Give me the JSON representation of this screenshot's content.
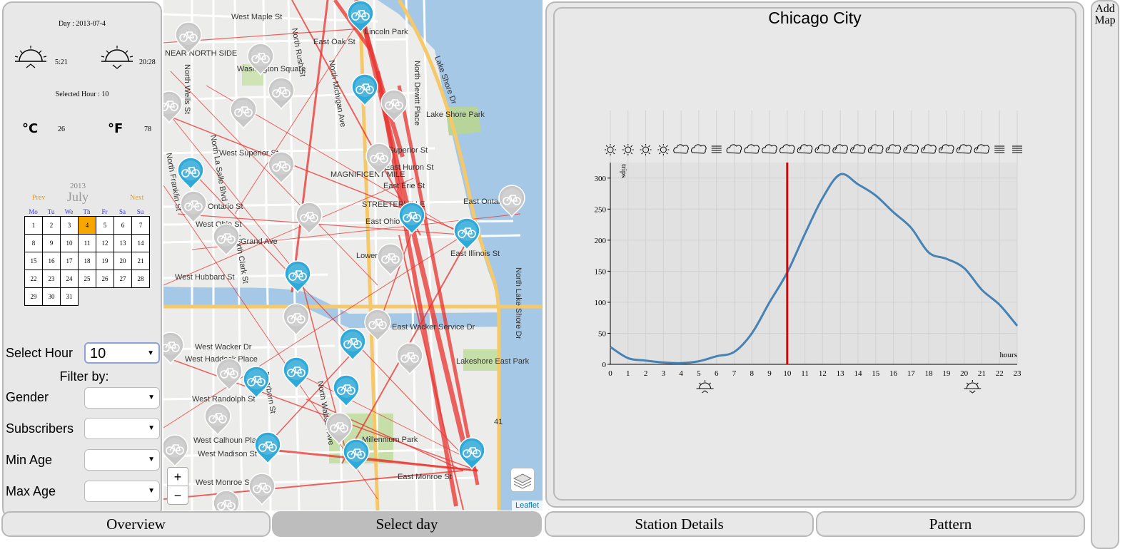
{
  "left_panel": {
    "day_label": "Day : 2013-07-4",
    "sunrise": "5:21",
    "sunset": "20:28",
    "selected_hour_label": "Selected Hour : 10",
    "celsius_symbol": "°C",
    "fahrenheit_symbol": "°F",
    "celsius": "26",
    "fahrenheit": "78"
  },
  "calendar": {
    "year": "2013",
    "month": "July",
    "prev": "Prev",
    "next": "Next",
    "weekdays": [
      "Mo",
      "Tu",
      "We",
      "Th",
      "Fr",
      "Sa",
      "Su"
    ],
    "days": [
      "1",
      "2",
      "3",
      "4",
      "5",
      "6",
      "7",
      "8",
      "9",
      "10",
      "11",
      "12",
      "13",
      "14",
      "15",
      "16",
      "17",
      "18",
      "19",
      "20",
      "21",
      "22",
      "23",
      "24",
      "25",
      "26",
      "27",
      "28",
      "29",
      "30",
      "31"
    ],
    "selected_day": "4"
  },
  "filters": {
    "select_hour_label": "Select Hour",
    "select_hour_value": "10",
    "filter_by": "Filter by:",
    "gender_label": "Gender",
    "subscribers_label": "Subscribers",
    "min_age_label": "Min Age",
    "max_age_label": "Max Age",
    "gender_value": "",
    "subscribers_value": "",
    "min_age_value": "",
    "max_age_value": ""
  },
  "map": {
    "zoom_in": "+",
    "zoom_out": "−",
    "attribution": "Leaflet",
    "street_labels": [
      "West Maple St",
      "East Oak St",
      "North Rush St",
      "North Michigan Ave",
      "North Dewitt Place",
      "Lake Shore Dr",
      "Lincoln Park",
      "Lake Shore Park",
      "West Superior St",
      "East Superior St",
      "East Huron St",
      "East Erie St",
      "East Ontario St",
      "Ontario St",
      "West Ohio St",
      "East Ohio St",
      "Grand Ave",
      "East Illinois St",
      "West Hubbard St",
      "Lower",
      "East Wacker Service Dr",
      "West Wacker Dr",
      "West Haddock Place",
      "West Randolph St",
      "Lakeshore East Park",
      "Millennium Park",
      "West Calhoun Place",
      "West Madison St",
      "East Monroe St",
      "West Monroe St",
      "North Wells St",
      "North La Salle Blvd",
      "North Clark St",
      "North Franklin St",
      "North Wabash Ave",
      "Dearborn St",
      "North Lake Shore Dr",
      "MAGNIFICENT MILE",
      "STREETERVILLE",
      "NEAR NORTH SIDE",
      "Washington Square",
      "41"
    ],
    "icon_colors": {
      "active": "#2fa9d8",
      "inactive": "#c8c8c8",
      "route": "#e8322e"
    }
  },
  "chart_data": {
    "type": "line",
    "title": "Chicago City",
    "xlabel": "hours",
    "ylabel": "trips",
    "x": [
      0,
      1,
      2,
      3,
      4,
      5,
      6,
      7,
      8,
      9,
      10,
      11,
      12,
      13,
      14,
      15,
      16,
      17,
      18,
      19,
      20,
      21,
      22,
      23
    ],
    "series": [
      {
        "values": [
          28,
          10,
          6,
          3,
          2,
          5,
          13,
          20,
          50,
          100,
          148,
          210,
          268,
          306,
          290,
          272,
          245,
          220,
          180,
          170,
          155,
          120,
          96,
          62
        ]
      }
    ],
    "ylim": [
      0,
      325
    ],
    "yticks": [
      0,
      50,
      100,
      150,
      200,
      250,
      300
    ],
    "selected_hour": 10,
    "sunrise_hour": 5.35,
    "sunset_hour": 20.47,
    "weather_icons": [
      "sun",
      "sun",
      "sun",
      "sun",
      "cloud",
      "cloud",
      "fog",
      "cloud",
      "cloud",
      "cloud",
      "cloud",
      "rain",
      "rain",
      "rain",
      "rain",
      "rain",
      "rain",
      "rain",
      "rain",
      "rain",
      "rain",
      "rain",
      "fog",
      "fog"
    ],
    "line_color": "#4682b4",
    "marker_color": "#e00000",
    "grid": true
  },
  "tabs": {
    "overview": "Overview",
    "select_day": "Select day",
    "station_details": "Station Details",
    "pattern": "Pattern"
  },
  "add_map": "Add Map"
}
